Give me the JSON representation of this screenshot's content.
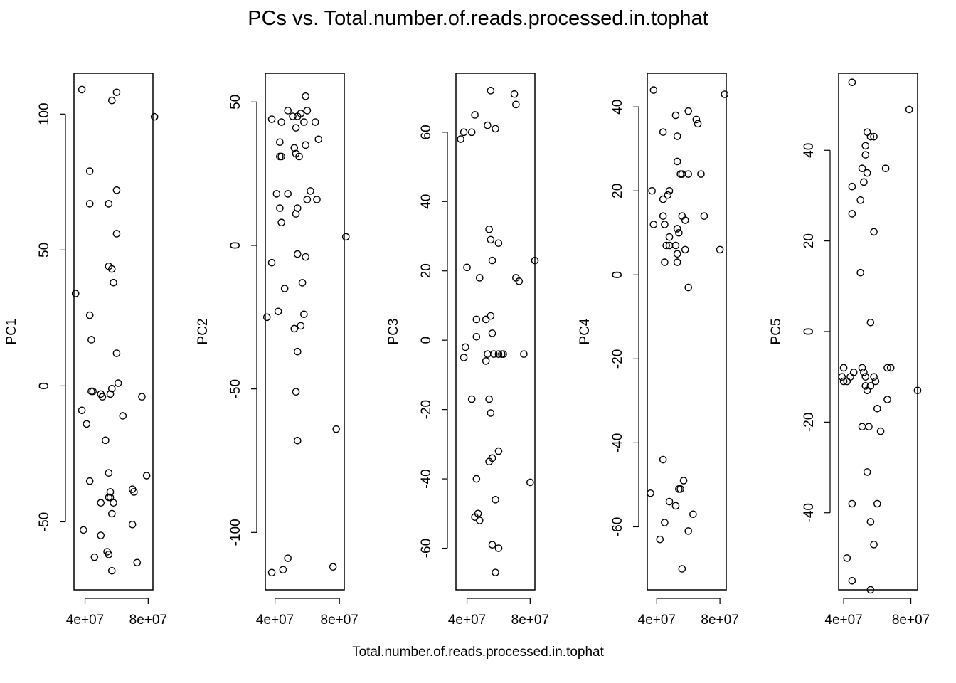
{
  "figure": {
    "title": "PCs vs. Total.number.of.reads.processed.in.tophat",
    "xlabel": "Total.number.of.reads.processed.in.tophat"
  },
  "chart_data": [
    {
      "type": "scatter",
      "ylabel": "PC1",
      "xlim": [
        33000000,
        83000000
      ],
      "ylim": [
        -75,
        115
      ],
      "xticks": [
        40000000,
        80000000
      ],
      "xtick_labels": [
        "4e+07",
        "8e+07"
      ],
      "yticks": [
        -50,
        0,
        50,
        100
      ],
      "ytick_labels": [
        "-50",
        "0",
        "50",
        "100"
      ],
      "x": [
        38000000,
        60000000,
        57000000,
        84000000,
        43000000,
        60000000,
        43000000,
        55000000,
        60000000,
        55000000,
        57000000,
        58000000,
        34000000,
        43000000,
        44000000,
        60000000,
        61000000,
        44000000,
        45000000,
        50000000,
        51000000,
        57000000,
        56000000,
        53000000,
        76000000,
        38000000,
        41000000,
        64000000,
        55000000,
        56000000,
        79000000,
        43000000,
        70000000,
        71000000,
        56000000,
        55000000,
        50000000,
        58000000,
        57000000,
        39000000,
        50000000,
        70000000,
        46000000,
        55000000,
        54000000,
        73000000,
        57000000
      ],
      "y": [
        109,
        108,
        105,
        99,
        79,
        72,
        67,
        67,
        56,
        44,
        43,
        38,
        34,
        26,
        17,
        12,
        1,
        -2,
        -2,
        -3,
        -4,
        -1,
        -3,
        -20,
        -4,
        -9,
        -14,
        -11,
        -32,
        -39,
        -33,
        -35,
        -38,
        -39,
        -41,
        -41,
        -43,
        -43,
        -47,
        -53,
        -55,
        -51,
        -63,
        -62,
        -61,
        -65,
        -68
      ]
    },
    {
      "type": "scatter",
      "ylabel": "PC2",
      "xlim": [
        34000000,
        83000000
      ],
      "ylim": [
        -120,
        60
      ],
      "xticks": [
        40000000,
        80000000
      ],
      "xtick_labels": [
        "4e+07",
        "8e+07"
      ],
      "yticks": [
        -100,
        -50,
        0,
        50
      ],
      "ytick_labels": [
        "-100",
        "-50",
        "0",
        "50"
      ],
      "x": [
        59000000,
        48000000,
        56000000,
        54000000,
        60000000,
        51000000,
        38000000,
        44000000,
        58000000,
        65000000,
        53000000,
        67000000,
        43000000,
        59000000,
        52000000,
        43000000,
        55000000,
        44000000,
        53000000,
        41000000,
        48000000,
        62000000,
        60000000,
        66000000,
        43000000,
        54000000,
        53000000,
        44000000,
        84000000,
        38000000,
        54000000,
        59000000,
        57000000,
        46000000,
        35000000,
        42000000,
        58000000,
        56000000,
        52000000,
        54000000,
        53000000,
        78000000,
        54000000,
        48000000,
        76000000,
        45000000,
        38000000
      ],
      "y": [
        52,
        47,
        46,
        45,
        47,
        45,
        44,
        43,
        43,
        43,
        41,
        37,
        36,
        35,
        34,
        31,
        31,
        31,
        32,
        18,
        18,
        19,
        16,
        16,
        13,
        13,
        11,
        8,
        3,
        -6,
        -3,
        -4,
        -13,
        -15,
        -25,
        -23,
        -24,
        -28,
        -29,
        -37,
        -51,
        -64,
        -68,
        -109,
        -112,
        -113,
        -114
      ]
    },
    {
      "type": "scatter",
      "ylabel": "PC3",
      "xlim": [
        33000000,
        83000000
      ],
      "ylim": [
        -72,
        77
      ],
      "xticks": [
        40000000,
        80000000
      ],
      "xtick_labels": [
        "4e+07",
        "8e+07"
      ],
      "yticks": [
        -60,
        -40,
        -20,
        0,
        20,
        40,
        60
      ],
      "ytick_labels": [
        "-60",
        "-40",
        "-20",
        "0",
        "20",
        "40",
        "60"
      ],
      "x": [
        55000000,
        70000000,
        71000000,
        45000000,
        38000000,
        43000000,
        53000000,
        58000000,
        36000000,
        54000000,
        55000000,
        60000000,
        56000000,
        83000000,
        40000000,
        71000000,
        73000000,
        48000000,
        55000000,
        52000000,
        46000000,
        56000000,
        46000000,
        39000000,
        38000000,
        53000000,
        52000000,
        57000000,
        60000000,
        63000000,
        62000000,
        76000000,
        43000000,
        54000000,
        55000000,
        56000000,
        60000000,
        46000000,
        54000000,
        80000000,
        47000000,
        45000000,
        48000000,
        58000000,
        60000000,
        56000000,
        58000000
      ],
      "y": [
        72,
        71,
        68,
        65,
        60,
        60,
        62,
        61,
        58,
        32,
        29,
        28,
        23,
        23,
        21,
        18,
        17,
        18,
        7,
        6,
        6,
        2,
        1,
        -2,
        -5,
        -4,
        -6,
        -4,
        -4,
        -4,
        -4,
        -4,
        -17,
        -17,
        -21,
        -34,
        -32,
        -40,
        -35,
        -41,
        -50,
        -51,
        -52,
        -46,
        -60,
        -59,
        -67
      ]
    },
    {
      "type": "scatter",
      "ylabel": "PC4",
      "xlim": [
        34000000,
        84000000
      ],
      "ylim": [
        -75,
        48
      ],
      "xticks": [
        40000000,
        80000000
      ],
      "xtick_labels": [
        "4e+07",
        "8e+07"
      ],
      "yticks": [
        -60,
        -40,
        -20,
        0,
        20,
        40
      ],
      "ytick_labels": [
        "-60",
        "-40",
        "-20",
        "0",
        "20",
        "40"
      ],
      "x": [
        38000000,
        83000000,
        60000000,
        52000000,
        44000000,
        53000000,
        66000000,
        65000000,
        68000000,
        55000000,
        53000000,
        56000000,
        60000000,
        37000000,
        48000000,
        47000000,
        44000000,
        44000000,
        38000000,
        45000000,
        56000000,
        58000000,
        53000000,
        70000000,
        80000000,
        54000000,
        48000000,
        46000000,
        48000000,
        52000000,
        58000000,
        53000000,
        53000000,
        45000000,
        60000000,
        44000000,
        57000000,
        54000000,
        55000000,
        48000000,
        52000000,
        63000000,
        45000000,
        60000000,
        42000000,
        36000000,
        56000000
      ],
      "y": [
        44,
        43,
        39,
        38,
        34,
        33,
        36,
        37,
        24,
        24,
        27,
        24,
        24,
        20,
        20,
        19,
        18,
        14,
        12,
        12,
        14,
        13,
        11,
        14,
        6,
        10,
        9,
        7,
        7,
        7,
        6,
        5,
        3,
        3,
        -3,
        -44,
        -49,
        -51,
        -51,
        -54,
        -55,
        -57,
        -59,
        -61,
        -63,
        -52,
        -70
      ]
    },
    {
      "type": "scatter",
      "ylabel": "PC5",
      "xlim": [
        37000000,
        84000000
      ],
      "ylim": [
        -57,
        57
      ],
      "xticks": [
        40000000,
        80000000
      ],
      "xtick_labels": [
        "4e+07",
        "8e+07"
      ],
      "yticks": [
        -40,
        -20,
        0,
        20,
        40
      ],
      "ytick_labels": [
        "-40",
        "-20",
        "0",
        "20",
        "40"
      ],
      "x": [
        45000000,
        79000000,
        54000000,
        56000000,
        58000000,
        53000000,
        53000000,
        51000000,
        52000000,
        54000000,
        65000000,
        45000000,
        50000000,
        45000000,
        58000000,
        50000000,
        56000000,
        40000000,
        39000000,
        40000000,
        42000000,
        44000000,
        46000000,
        51000000,
        52000000,
        53000000,
        53000000,
        54000000,
        56000000,
        58000000,
        59000000,
        62000000,
        60000000,
        66000000,
        66000000,
        68000000,
        84000000,
        55000000,
        51000000,
        54000000,
        60000000,
        56000000,
        45000000,
        58000000,
        42000000,
        45000000,
        56000000
      ],
      "y": [
        55,
        49,
        44,
        43,
        43,
        41,
        39,
        36,
        33,
        35,
        36,
        32,
        29,
        26,
        22,
        13,
        2,
        -8,
        -10,
        -11,
        -11,
        -10,
        -9,
        -8,
        -9,
        -10,
        -12,
        -13,
        -12,
        -10,
        -11,
        -22,
        -17,
        -15,
        -8,
        -8,
        -13,
        -21,
        -21,
        -31,
        -38,
        -42,
        -38,
        -47,
        -50,
        -55,
        -57
      ]
    }
  ]
}
